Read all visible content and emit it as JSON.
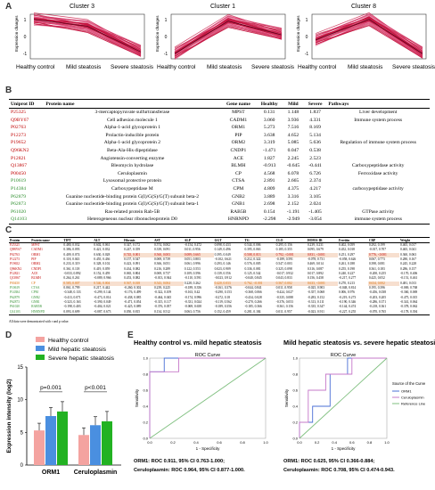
{
  "panels": {
    "a": "A",
    "b": "B",
    "c": "C",
    "d": "D",
    "e": "E"
  },
  "clusters": [
    {
      "title": "Cluster 3",
      "ylabel": "Expression changes",
      "ticks": [
        "1",
        "0",
        "-1"
      ],
      "x": [
        "Healthy control",
        "Mild steatosis",
        "Severe steatosis"
      ],
      "trend": [
        1.0,
        0.6,
        -0.9
      ]
    },
    {
      "title": "Cluster 1",
      "ylabel": "Expression changes",
      "ticks": [
        "1",
        "0",
        "-1"
      ],
      "x": [
        "Healthy control",
        "Mild steatosis",
        "Severe steatosis"
      ],
      "trend": [
        -1.0,
        0.9,
        0.1
      ]
    },
    {
      "title": "Cluster 8",
      "ylabel": "Expression changes",
      "ticks": [
        "1",
        "0",
        "-1"
      ],
      "x": [
        "Healthy control",
        "Mild steatosis",
        "Severe steatosis"
      ],
      "trend": [
        -0.2,
        1.0,
        -1.0
      ]
    }
  ],
  "tableB": {
    "headers": [
      "Uniprot ID",
      "Protein name",
      "Gene name",
      "Healthy",
      "Mild",
      "Severe",
      "Pathways"
    ],
    "rows": [
      {
        "id": "P25325",
        "name": "3-mercaptopyruvate sulfurtransferase",
        "gene": "MPST",
        "h": "0.131",
        "m": "1.148",
        "s": "1.837",
        "path": "Liver development",
        "color": "red"
      },
      {
        "id": "Q9BY67",
        "name": "Cell adhesion molecule 1",
        "gene": "CADM1",
        "h": "3.060",
        "m": "3.936",
        "s": "4.331",
        "path": "Immune system process",
        "color": "red"
      },
      {
        "id": "P02763",
        "name": "Alpha-1-acid glycoprotein 1",
        "gene": "ORM1",
        "h": "5.273",
        "m": "7.516",
        "s": "8.169",
        "path": "",
        "color": "red"
      },
      {
        "id": "P12273",
        "name": "Prolactin-inducible protein",
        "gene": "PIP",
        "h": "3.638",
        "m": "4.652",
        "s": "5.134",
        "path": "",
        "color": "red"
      },
      {
        "id": "P19652",
        "name": "Alpha-1-acid glycoprotein 2",
        "gene": "ORM2",
        "h": "3.319",
        "m": "5.085",
        "s": "5.636",
        "path": "Regulation of immune system process",
        "color": "red"
      },
      {
        "id": "Q96KN2",
        "name": "Beta-Ala-His dipeptidase",
        "gene": "CNDP1",
        "h": "-1.471",
        "m": "0.047",
        "s": "0.538",
        "path": "",
        "color": "red"
      },
      {
        "id": "P12821",
        "name": "Angiotensin-converting enzyme",
        "gene": "ACE",
        "h": "1.827",
        "m": "2.245",
        "s": "2.523",
        "path": "",
        "color": "red"
      },
      {
        "id": "Q13867",
        "name": "Bleomycin hydrolase",
        "gene": "BLMH",
        "h": "-0.913",
        "m": "-0.645",
        "s": "-0.441",
        "path": "Carboxypeptidase activity",
        "color": "red"
      },
      {
        "id": "P00450",
        "name": "Ceruloplasmin",
        "gene": "CP",
        "h": "4.568",
        "m": "6.078",
        "s": "6.726",
        "path": "Ferroxidase activity",
        "color": "red"
      },
      {
        "id": "P10619",
        "name": "Lysosomal protective protein",
        "gene": "CTSA",
        "h": "2.891",
        "m": "2.665",
        "s": "2.374",
        "path": "",
        "color": "green"
      },
      {
        "id": "P14384",
        "name": "Carboxypeptidase M",
        "gene": "CPM",
        "h": "4.809",
        "m": "4.375",
        "s": "4.217",
        "path": "carboxypeptidase activity",
        "color": "green"
      },
      {
        "id": "P62879",
        "name": "Guanine nucleotide-binding protein G(I)/G(S)/G(T) subunit beta-2",
        "gene": "GNB2",
        "h": "3.889",
        "m": "3.316",
        "s": "3.105",
        "path": "",
        "color": "green"
      },
      {
        "id": "P62873",
        "name": "Guanine nucleotide-binding protein G(I)/G(S)/G(T) subunit beta-1",
        "gene": "GNB1",
        "h": "2.698",
        "m": "2.152",
        "s": "2.024",
        "path": "",
        "color": "green"
      },
      {
        "id": "P61020",
        "name": "Ras-related protein Rab-5B",
        "gene": "RAB5B",
        "h": "0.154",
        "m": "-1.191",
        "s": "-1.405",
        "path": "GTPase activity",
        "color": "green"
      },
      {
        "id": "Q14103",
        "name": "Heterogeneous nuclear ribonucleoprotein D0",
        "gene": "HNRNPD",
        "h": "-2.298",
        "m": "-2.949",
        "s": "-3.054",
        "path": "immune system process",
        "color": "green"
      }
    ]
  },
  "tableC": {
    "headers": [
      "Protein",
      "Protein name",
      "TIPT",
      "ALT",
      "Fibrosis",
      "AST",
      "ALP",
      "GGT",
      "TG",
      "CLO",
      "HOMA-IR",
      "Ferritin",
      "CRP",
      "Weight"
    ],
    "rows": [
      {
        "id": "P25325",
        "gene": "MPST",
        "v": [
          "0.480, 0.032",
          "0.602, 0.061",
          "0.347, 0.172",
          "0.574, 0.002",
          "-0.154, 0.472",
          "0.098, 0.433",
          "0.544, 0.006",
          "0.295, 0.156",
          "0.239, 0.231",
          "0.402, 0.059",
          "0.292, 0.199",
          "0.465, 0.017"
        ],
        "color": "red"
      },
      {
        "id": "Q9BY67",
        "gene": "CADM1",
        "v": [
          "0.386, 0.093",
          "0.421, 0.032",
          "0.247, 0.359",
          "0.339, 0.091",
          "0.011, 0.956",
          "0.149, 0.496",
          "0.395, 0.063",
          "0.185, 0.355",
          "0.095, 0.679",
          "0.452, 0.018",
          "-0.017, 0.707",
          "0.465, 0.041"
        ],
        "color": "red"
      },
      {
        "id": "P02763",
        "gene": "ORM1",
        "v": [
          "0.409, 0.074",
          "0.630, 0.028",
          "0.745, 0.001",
          "0.560, 0.003",
          "0.089, 0.665",
          "0.395, 0.049",
          "0.508, 0.013",
          "0.792, <0.001",
          "0.831, <0.001",
          "0.251, 0.297",
          "0.776, <0.001",
          "0.360, 0.063"
        ],
        "color": "red"
      },
      {
        "id": "P12273",
        "gene": "PIP",
        "v": [
          "0.118, 0.043",
          "0.455, 0.436",
          "0.157, 0.547",
          "0.069, 0.739",
          "0.051, 0.803",
          "-0.102, 0.621",
          "0.212, 0.322",
          "-0.189, 0.591",
          "-0.078, 0.731",
          "-0.058, 0.626",
          "0.067, 0.773",
          "0.280, 0.167"
        ],
        "color": "red"
      },
      {
        "id": "P19652",
        "gene": "ORM2",
        "v": [
          "0.233, 0.319",
          "0.328, 0.102",
          "0.423, 0.091",
          "0.366, 0.051",
          "0.061, 0.996",
          "0.293, 0.146",
          "0.576, 0.005",
          "0.547, 0.003",
          "0.469, 0.014",
          "0.261, 0.188",
          "0.398, 0.081",
          "0.245, 0.228"
        ],
        "color": "red"
      },
      {
        "id": "Q96KN2",
        "gene": "CNDP1",
        "v": [
          "0.361, 0.118",
          "0.419, 0.059",
          "0.434, 0.082",
          "0.216, 0.289",
          "0.122, 0.553",
          "0.023, 0.909",
          "0.336, 0.081",
          "0.325, 0.098",
          "0.316, 0.087",
          "0.255, 0.198",
          "0.361, 0.183",
          "0.286, 0.157"
        ],
        "color": "red"
      },
      {
        "id": "P12821",
        "gene": "ACE",
        "v": [
          "-0.033, 0.892",
          "0.152, 0.459",
          "0.065, 0.804",
          "0.069, 0.737",
          "0.109, 0.596",
          "0.139, 0.556",
          "0.125, 0.542",
          "-0.017, 0.932",
          "0.017, 0.892",
          "0.240, 0.227",
          "-0.200, 0.255",
          "-0.170, 0.406"
        ],
        "color": "red"
      },
      {
        "id": "Q13867",
        "gene": "BLMH",
        "v": [
          "0.264, 0.261",
          "-0.089, 0.966",
          "0.453, 0.082",
          "-0.013, 0.944",
          "-0.110, 0.591",
          "-0.023, 0.912",
          "-0.040, 0.845",
          "0.043, 0.833",
          "0.156, 0.458",
          "-0.217, 0.277",
          "0.425, 0.052",
          "-0.151, 0.461"
        ],
        "color": "red"
      },
      {
        "id": "P00450",
        "gene": "CP",
        "v": [
          "0.585, 0.007",
          "0.546, 0.004",
          "0.567, 0.018",
          "0.543, 0.004",
          "0.228, 0.262",
          "0.420, 0.033",
          "0.762, <0.001",
          "0.567, 0.002",
          "0.633, <0.001",
          "0.270, 0.213",
          "0.634, 0.002",
          "0.481, 0.013"
        ],
        "color": "orange"
      },
      {
        "id": "P10619",
        "gene": "CTSA",
        "v": [
          "0.061, 0.799",
          "0.217, 0.442",
          "-0.260, 0.302",
          "0.239, 0.225",
          "-0.189, 0.356",
          "-0.161, 0.376",
          "-0.044, 0.841",
          "0.011, 0.958",
          "-0.025, 0.903",
          "-0.048, 0.814",
          "0.195, 0.396",
          "-0.069, 0.768"
        ],
        "color": "green"
      },
      {
        "id": "P14384",
        "gene": "CPM",
        "v": [
          "-0.348, 0.133",
          "-0.299, 0.144",
          "-0.176, 0.499",
          "-0.322, 0.109",
          "-0.163, 0.42",
          "-0.290, 0.153",
          "-0.368, 0.066",
          "-0.424, 0.027",
          "-0.357, 0.068",
          "0.006, 0.976",
          "-0.456, 0.038",
          "-0.360, 0.069"
        ],
        "color": "green"
      },
      {
        "id": "P62879",
        "gene": "GNB2",
        "v": [
          "-0.413, 0.071",
          "-0.473, 0.014",
          "-0.438, 0.085",
          "-0.464, 0.045",
          "-0.174, 0.996",
          "-0.272, 0.18",
          "-0.434, 0.028",
          "-0.335, 0.088",
          "-0.283, 0.152",
          "-0.219, 0.273",
          "-0.203, 0.205",
          "-0.475, 0.015"
        ],
        "color": "green"
      },
      {
        "id": "P62873",
        "gene": "GNB1",
        "v": [
          "-0.323, 0.163",
          "-0.390, 0.049",
          "-0.471, 0.054",
          "-0.315, 0.117",
          "-0.331, 0.024",
          "-0.119, 0.562",
          "-0.270, 0.266",
          "-0.376, 0.053",
          "-0.313, 0.111",
          "-0.190, 0.346",
          "-0.286, 0.371",
          "-0.341, 0.064"
        ],
        "color": "green"
      },
      {
        "id": "P61020",
        "gene": "RAB5B",
        "v": [
          "-0.198, 0.403",
          "-0.404, 0.021",
          "-0.425, 0.089",
          "-0.376, 0.057",
          "-0.069, 0.658",
          "-0.189, 0.356",
          "-0.185, 0.366",
          "-0.361, 0.156",
          "-0.335, 0.347",
          "-0.144, 0.474",
          "-0.218, 0.361",
          "-0.378, 0.062"
        ],
        "color": "green"
      },
      {
        "id": "Q14103",
        "gene": "HNRNPD",
        "v": [
          "0.093, 0.699",
          "-0.087, 0.673",
          "0.050, 0.815",
          "0.134, 0.512",
          "0.063, 0.756",
          "0.152, 0.459",
          "0.281, 0.184",
          "0.011, 0.957",
          "-0.023, 0.911",
          "-0.227, 0.255",
          "-0.070, 0.765",
          "-0.178, 0.394"
        ],
        "color": "green"
      }
    ],
    "note": "All data were demonstrated with r and p value."
  },
  "chart_data": [
    {
      "type": "bar",
      "categories": [
        "ORM1",
        "Ceruloplasmin"
      ],
      "series": [
        {
          "name": "Healthy control",
          "values": [
            5.3,
            4.6
          ],
          "color": "#f4a3a0"
        },
        {
          "name": "Mild hepatic steatosis",
          "values": [
            7.5,
            6.1
          ],
          "color": "#4a8fe0"
        },
        {
          "name": "Severe hepatic steatosis",
          "values": [
            8.2,
            6.7
          ],
          "color": "#22b222"
        }
      ],
      "ylabel": "Expression intensity (log2)",
      "ylim": [
        0,
        15
      ],
      "yticks": [
        "0",
        "5",
        "10",
        "15"
      ],
      "annotations": [
        "p=0.001",
        "p<0.001"
      ]
    },
    {
      "type": "line",
      "title": "ROC Curve",
      "panel_title": "Healthy control vs. mild hepatic steatosis",
      "xlabel": "1 - Specificity",
      "ylabel": "Sensitivity",
      "ticks": [
        "0.0",
        "0.2",
        "0.4",
        "0.6",
        "0.8",
        "1.0"
      ],
      "series": [
        {
          "name": "ORM1",
          "x": [
            0,
            0,
            0.125,
            0.125,
            1
          ],
          "y": [
            0,
            0.83,
            0.83,
            1,
            1
          ],
          "color": "#4a6fd6"
        },
        {
          "name": "Ceruloplasmin",
          "x": [
            0,
            0,
            0.25,
            0.25,
            1
          ],
          "y": [
            0,
            0.83,
            0.83,
            1,
            1
          ],
          "color": "#c678c9"
        },
        {
          "name": "Reference Line",
          "x": [
            0,
            1
          ],
          "y": [
            0,
            1
          ],
          "color": "#7fbf7f"
        }
      ],
      "caption": [
        "ORM1: ROC 0.911, 95% CI 0.763-1.000;",
        "Ceruloplasmin: ROC 0.964, 95% CI 0.877-1.000."
      ]
    },
    {
      "type": "line",
      "title": "ROC Curve",
      "panel_title": "Mild hepatic steatosis vs. severe hepatic steatosis",
      "xlabel": "1 - Specificity",
      "ylabel": "Sensitivity",
      "ticks": [
        "0.0",
        "0.2",
        "0.4",
        "0.6",
        "0.8",
        "1.0"
      ],
      "legend_title": "Source of the Curve",
      "series": [
        {
          "name": "ORM1",
          "x": [
            0,
            0,
            0.15,
            0.15,
            0.35,
            0.35,
            0.55,
            0.55,
            1
          ],
          "y": [
            0,
            0.2,
            0.2,
            0.4,
            0.4,
            0.8,
            0.8,
            1,
            1
          ],
          "color": "#4a6fd6"
        },
        {
          "name": "Ceruloplasmin",
          "x": [
            0,
            0,
            0.1,
            0.1,
            0.3,
            0.3,
            0.6,
            0.6,
            1
          ],
          "y": [
            0,
            0.2,
            0.2,
            0.6,
            0.6,
            0.8,
            0.8,
            1,
            1
          ],
          "color": "#c678c9"
        },
        {
          "name": "Reference Line",
          "x": [
            0,
            1
          ],
          "y": [
            0,
            1
          ],
          "color": "#7fbf7f"
        }
      ],
      "caption": [
        "ORM1: ROC 0.625, 95% CI 0.366-0.884;",
        "Ceruloplasmin: ROC 0.708, 95% CI 0.474-0.943."
      ]
    }
  ]
}
